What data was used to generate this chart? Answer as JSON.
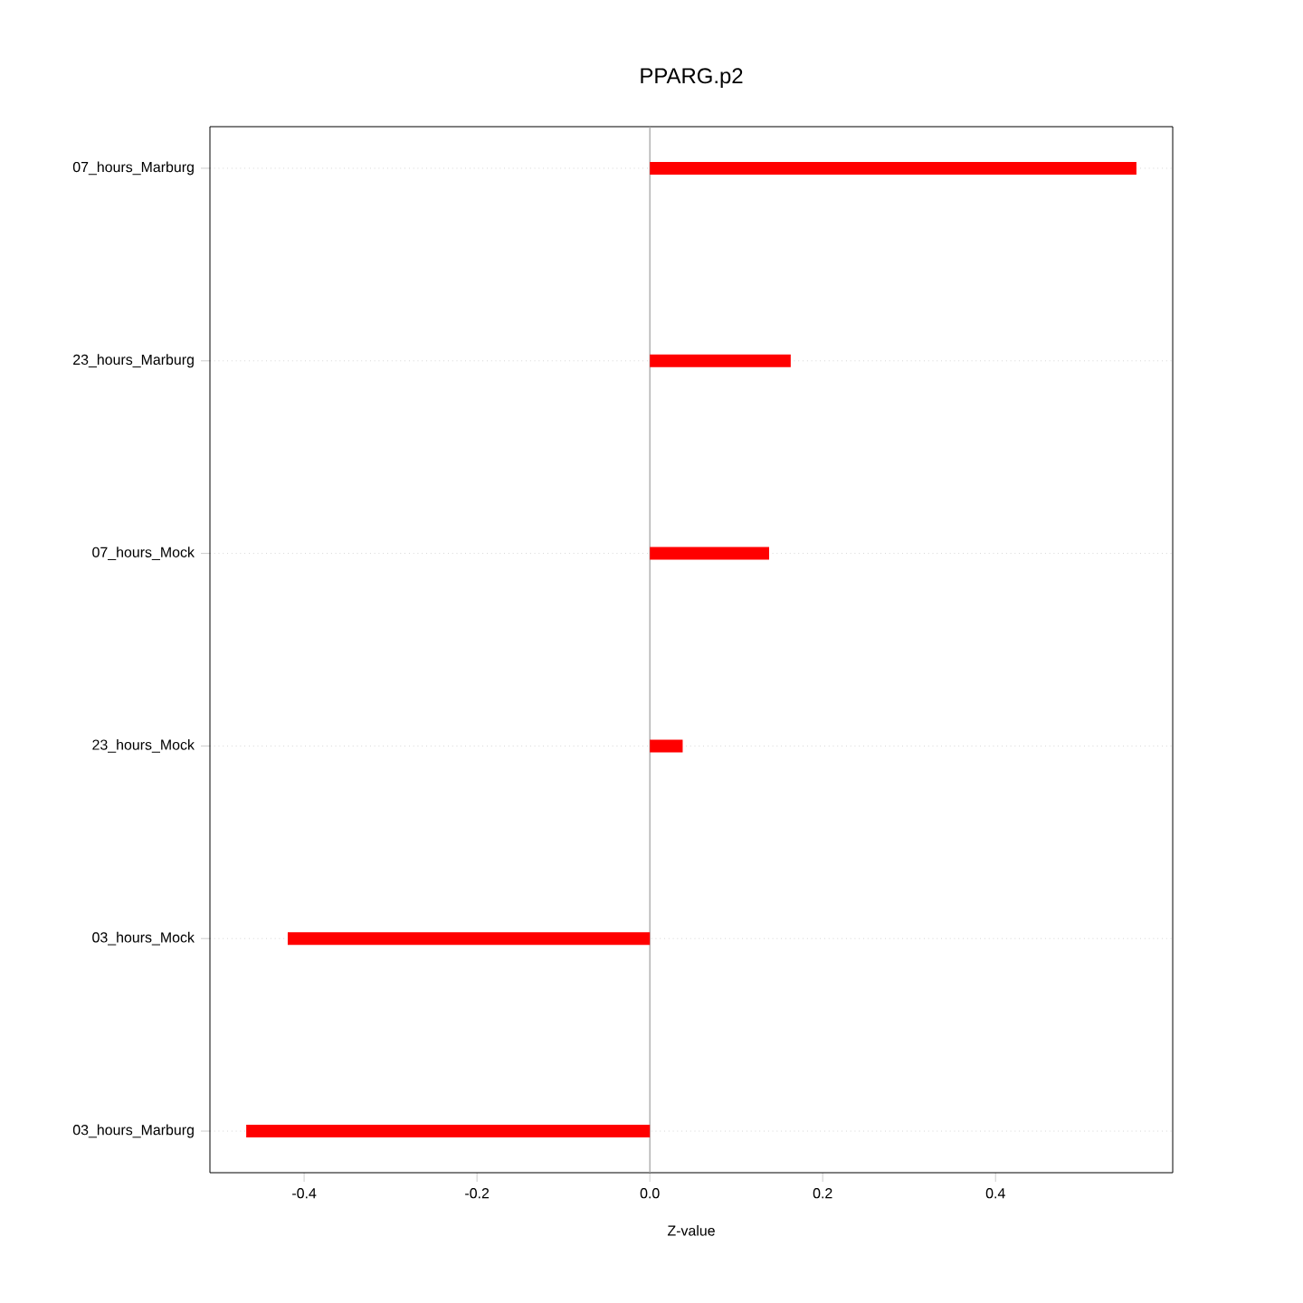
{
  "chart_data": {
    "type": "bar",
    "orientation": "horizontal",
    "title": "PPARG.p2",
    "xlabel": "Z-value",
    "categories": [
      "07_hours_Marburg",
      "23_hours_Marburg",
      "07_hours_Mock",
      "23_hours_Mock",
      "03_hours_Mock",
      "03_hours_Marburg"
    ],
    "values": [
      0.563,
      0.163,
      0.138,
      0.038,
      -0.419,
      -0.467
    ],
    "color": "#ff0000",
    "xlim": [
      -0.509,
      0.605
    ],
    "xticks": [
      -0.4,
      -0.2,
      {
        "value": 0,
        "label": "0.0"
      },
      0.2,
      0.4
    ],
    "grid": "y",
    "ref_lines": [
      {
        "axis": "x",
        "value": 0,
        "color": "#a0a0a0"
      }
    ]
  }
}
